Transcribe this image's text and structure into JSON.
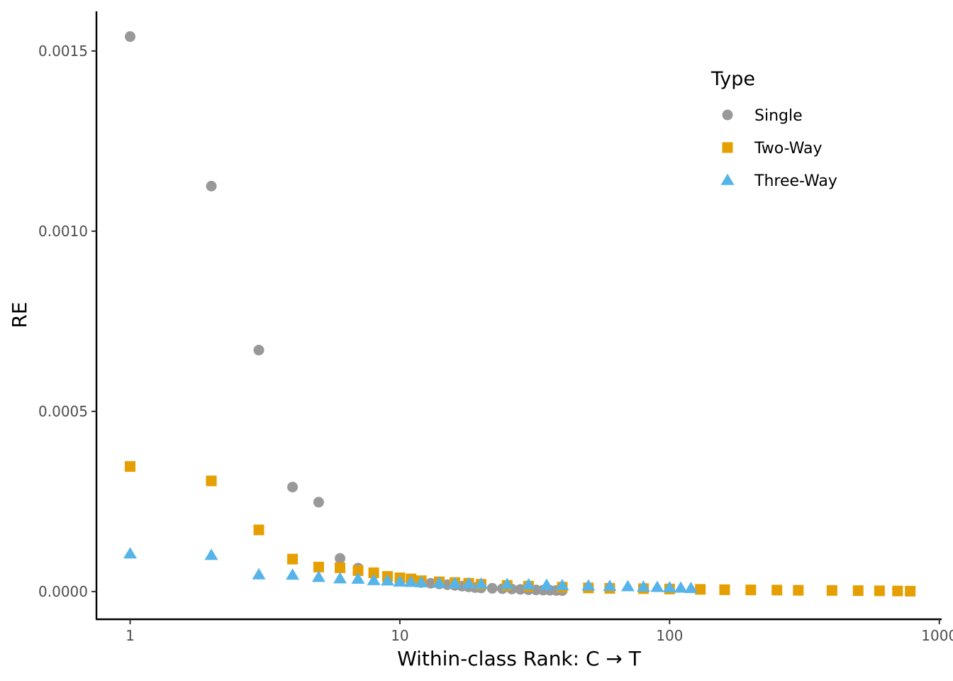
{
  "chart_data": {
    "type": "scatter",
    "title": "",
    "xlabel": "Within-class Rank: C → T",
    "ylabel": "RE",
    "x_scale": "log10",
    "xlim": [
      0.75,
      1020
    ],
    "ylim": [
      -7.7e-05,
      0.00161
    ],
    "x_ticks": [
      1,
      10,
      100,
      1000
    ],
    "x_tick_labels": [
      "1",
      "10",
      "100",
      "1000"
    ],
    "y_ticks": [
      0,
      0.0005,
      0.001,
      0.0015
    ],
    "y_tick_labels": [
      "0.0000",
      "0.0005",
      "0.0010",
      "0.0015"
    ],
    "grid": false,
    "legend": {
      "title": "Type",
      "position": "top-right"
    },
    "series": [
      {
        "name": "Single",
        "shape": "circle",
        "color": "#999999",
        "x": [
          1,
          2,
          3,
          4,
          5,
          6,
          7,
          8,
          9,
          10,
          11,
          12,
          13,
          14,
          15,
          16,
          17,
          18,
          19,
          20,
          22,
          24,
          26,
          28,
          30,
          32,
          34,
          36,
          38,
          40
        ],
        "y": [
          0.00154,
          0.001125,
          0.00067,
          0.00029,
          0.000248,
          9.2e-05,
          6.5e-05,
          4.8e-05,
          3.8e-05,
          3.2e-05,
          2.8e-05,
          2.5e-05,
          2.3e-05,
          2.1e-05,
          1.9e-05,
          1.7e-05,
          1.5e-05,
          1.3e-05,
          1.1e-05,
          1e-05,
          9e-06,
          8e-06,
          7e-06,
          6e-06,
          5e-06,
          4.5e-06,
          4e-06,
          3.5e-06,
          3e-06,
          2.5e-06
        ]
      },
      {
        "name": "Two-Way",
        "shape": "square",
        "color": "#E69F00",
        "x": [
          1,
          2,
          3,
          4,
          5,
          6,
          7,
          8,
          9,
          10,
          11,
          12,
          14,
          16,
          18,
          20,
          25,
          30,
          40,
          50,
          60,
          80,
          100,
          130,
          160,
          200,
          250,
          300,
          400,
          500,
          600,
          700,
          780
        ],
        "y": [
          0.000347,
          0.000307,
          0.000171,
          9e-05,
          6.8e-05,
          6.6e-05,
          5.8e-05,
          5.2e-05,
          4.2e-05,
          3.8e-05,
          3.5e-05,
          3e-05,
          2.7e-05,
          2.5e-05,
          2.3e-05,
          2e-05,
          1.7e-05,
          1.5e-05,
          1.2e-05,
          1e-05,
          9e-06,
          8e-06,
          7e-06,
          6e-06,
          5e-06,
          4.5e-06,
          4e-06,
          3.5e-06,
          3e-06,
          2.5e-06,
          2e-06,
          1.5e-06,
          1e-06
        ]
      },
      {
        "name": "Three-Way",
        "shape": "triangle",
        "color": "#56B4E9",
        "x": [
          1,
          2,
          3,
          4,
          5,
          6,
          7,
          8,
          9,
          10,
          11,
          12,
          14,
          16,
          18,
          20,
          25,
          30,
          35,
          40,
          50,
          60,
          70,
          80,
          90,
          100,
          110,
          120
        ],
        "y": [
          0.000105,
          0.000101,
          4.7e-05,
          4.6e-05,
          4e-05,
          3.6e-05,
          3.5e-05,
          3.1e-05,
          3e-05,
          2.7e-05,
          2.6e-05,
          2.5e-05,
          2.4e-05,
          2.3e-05,
          2.2e-05,
          2.1e-05,
          2e-05,
          1.9e-05,
          1.8e-05,
          1.7e-05,
          1.6e-05,
          1.5e-05,
          1.4e-05,
          1.3e-05,
          1.2e-05,
          1.1e-05,
          1e-05,
          9e-06
        ]
      }
    ]
  }
}
